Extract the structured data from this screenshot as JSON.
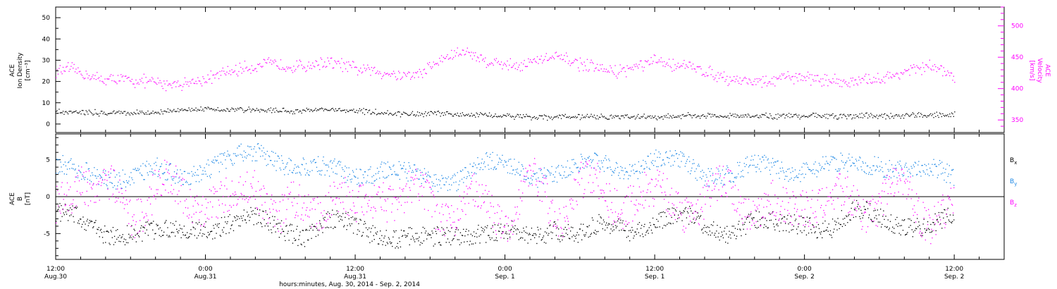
{
  "xaxis_title": "hours:minutes, Aug. 30, 2014 - Sep.  2, 2014",
  "x_ticks": [
    {
      "hours": 0,
      "time": "12:00",
      "date": "Aug.30"
    },
    {
      "hours": 12,
      "time": "0:00",
      "date": "Aug.31"
    },
    {
      "hours": 24,
      "time": "12:00",
      "date": "Aug.31"
    },
    {
      "hours": 36,
      "time": "0:00",
      "date": "Sep. 1"
    },
    {
      "hours": 48,
      "time": "12:00",
      "date": "Sep. 1"
    },
    {
      "hours": 60,
      "time": "0:00",
      "date": "Sep. 2"
    },
    {
      "hours": 72,
      "time": "12:00",
      "date": "Sep. 2"
    }
  ],
  "colors": {
    "black": "#000000",
    "magenta": "#ff00ff",
    "blue": "#1e88e5"
  },
  "chart_data": [
    {
      "type": "scatter",
      "x_unit": "hours since 12:00 Aug. 30, 2014",
      "xlim": [
        0,
        76
      ],
      "left_axis": {
        "label_lines": [
          "ACE",
          "Ion Density",
          "[cm⁻³]"
        ],
        "ylim": [
          -4,
          55
        ],
        "ticks": [
          0,
          10,
          20,
          30,
          40,
          50
        ]
      },
      "right_axis": {
        "label_lines": [
          "ACE",
          "Velocity",
          "[km/s]"
        ],
        "ylim": [
          330,
          530
        ],
        "ticks": [
          350,
          400,
          450,
          500
        ],
        "color": "#ff00ff"
      },
      "series": [
        {
          "key": "velocity",
          "color": "#ff00ff",
          "axis": "right",
          "x": [
            0,
            1,
            2,
            3,
            4,
            5,
            6,
            7,
            8,
            9,
            10,
            11,
            12,
            13,
            14,
            15,
            16,
            17,
            18,
            19,
            20,
            21,
            22,
            23,
            24,
            25,
            26,
            27,
            28,
            29,
            30,
            31,
            32,
            33,
            34,
            35,
            36,
            37,
            38,
            39,
            40,
            41,
            42,
            43,
            44,
            45,
            46,
            47,
            48,
            49,
            50,
            51,
            52,
            53,
            54,
            55,
            56,
            57,
            58,
            59,
            60,
            61,
            62,
            63,
            64,
            65,
            66,
            67,
            68,
            69,
            70,
            71,
            72
          ],
          "y": [
            427,
            432,
            426,
            418,
            414,
            416,
            413,
            412,
            410,
            408,
            409,
            411,
            415,
            422,
            428,
            433,
            436,
            440,
            438,
            436,
            437,
            441,
            442,
            438,
            432,
            430,
            427,
            424,
            422,
            423,
            436,
            448,
            456,
            460,
            448,
            442,
            440,
            438,
            442,
            448,
            450,
            446,
            440,
            434,
            430,
            428,
            432,
            438,
            444,
            440,
            438,
            434,
            428,
            422,
            416,
            414,
            412,
            410,
            416,
            420,
            418,
            416,
            414,
            412,
            410,
            414,
            416,
            420,
            428,
            432,
            436,
            430,
            416
          ]
        },
        {
          "key": "density",
          "color": "#000000",
          "axis": "left",
          "x": [
            0,
            1,
            2,
            3,
            4,
            5,
            6,
            7,
            8,
            9,
            10,
            11,
            12,
            13,
            14,
            15,
            16,
            17,
            18,
            19,
            20,
            21,
            22,
            23,
            24,
            25,
            26,
            27,
            28,
            29,
            30,
            31,
            32,
            33,
            34,
            35,
            36,
            37,
            38,
            39,
            40,
            41,
            42,
            43,
            44,
            45,
            46,
            47,
            48,
            49,
            50,
            51,
            52,
            53,
            54,
            55,
            56,
            57,
            58,
            59,
            60,
            61,
            62,
            63,
            64,
            65,
            66,
            67,
            68,
            69,
            70,
            71,
            72
          ],
          "y": [
            6,
            6,
            6,
            5.5,
            5.5,
            5.5,
            5.5,
            5.5,
            5.5,
            6,
            7,
            7.5,
            7.5,
            7,
            7,
            7,
            7,
            6.5,
            6.5,
            6,
            6.5,
            7,
            7,
            6.5,
            6,
            6,
            5.5,
            5,
            5,
            5,
            5,
            5,
            4.5,
            4.5,
            4.5,
            4,
            4,
            4,
            3.5,
            3.5,
            3.5,
            3.5,
            3.5,
            3.5,
            3.5,
            3.5,
            3.5,
            3.5,
            3.5,
            3.5,
            4,
            4,
            4,
            4,
            4,
            4,
            4,
            4,
            4,
            4,
            4,
            4,
            4,
            4,
            4,
            4,
            4,
            4,
            4,
            4.5,
            4.5,
            4.5,
            4.5
          ]
        }
      ]
    },
    {
      "type": "scatter",
      "x_unit": "hours since 12:00 Aug. 30, 2014",
      "xlim": [
        0,
        76
      ],
      "ylim": [
        -8.5,
        8.5
      ],
      "ticks": [
        -5,
        0,
        5
      ],
      "ylabel_lines": [
        "ACE",
        "B",
        "[nT]"
      ],
      "zero_line": true,
      "legend": [
        {
          "label": "B",
          "sub": "x",
          "color": "#000000"
        },
        {
          "label": "B",
          "sub": "y",
          "color": "#1e88e5"
        },
        {
          "label": "B",
          "sub": "z",
          "color": "#ff00ff"
        }
      ],
      "series": [
        {
          "key": "Bx",
          "color": "#000000",
          "x": [
            0,
            2,
            4,
            6,
            8,
            10,
            12,
            14,
            16,
            18,
            20,
            22,
            24,
            26,
            28,
            30,
            32,
            34,
            36,
            38,
            40,
            42,
            44,
            46,
            48,
            50,
            52,
            54,
            56,
            58,
            60,
            62,
            64,
            66,
            68,
            70,
            72
          ],
          "y": [
            -2,
            -3.5,
            -5,
            -4.5,
            -5,
            -4.5,
            -4,
            -3.5,
            -3,
            -4,
            -5,
            -3.5,
            -4,
            -5,
            -5.5,
            -6,
            -5,
            -4.5,
            -5,
            -5.5,
            -4,
            -5,
            -4,
            -4.5,
            -3,
            -2.5,
            -4,
            -4.5,
            -3,
            -4,
            -3.5,
            -4,
            -2,
            -3,
            -3.5,
            -4,
            -3
          ]
        },
        {
          "key": "By",
          "color": "#1e88e5",
          "x": [
            0,
            2,
            4,
            6,
            8,
            10,
            12,
            14,
            16,
            18,
            20,
            22,
            24,
            26,
            28,
            30,
            32,
            34,
            36,
            38,
            40,
            42,
            44,
            46,
            48,
            50,
            52,
            54,
            56,
            58,
            60,
            62,
            64,
            66,
            68,
            70,
            72
          ],
          "y": [
            4,
            3.5,
            3,
            2.5,
            3.5,
            3,
            4,
            5,
            6,
            5,
            4,
            3.5,
            3,
            4,
            3,
            2,
            2.5,
            4.5,
            4,
            3,
            3.5,
            4,
            4.5,
            4,
            5,
            4.5,
            3,
            3.5,
            4,
            3.5,
            4,
            4.5,
            4,
            4.5,
            4,
            3.5,
            2.5
          ]
        },
        {
          "key": "Bz",
          "color": "#ff00ff",
          "x": [
            0,
            2,
            4,
            6,
            8,
            10,
            12,
            14,
            16,
            18,
            20,
            22,
            24,
            26,
            28,
            30,
            32,
            34,
            36,
            38,
            40,
            42,
            44,
            46,
            48,
            50,
            52,
            54,
            56,
            58,
            60,
            62,
            64,
            66,
            68,
            70,
            72
          ],
          "y": [
            -3,
            4,
            0,
            -2,
            2,
            -1,
            1,
            -2,
            3,
            -3,
            -2,
            1,
            -3,
            2,
            -1,
            0,
            -2,
            -1,
            -2,
            1,
            -2,
            2,
            -1,
            1,
            -1,
            0,
            -2,
            2,
            -1,
            -3,
            1,
            -2,
            0,
            -1,
            1,
            -2,
            -3
          ]
        }
      ]
    }
  ]
}
